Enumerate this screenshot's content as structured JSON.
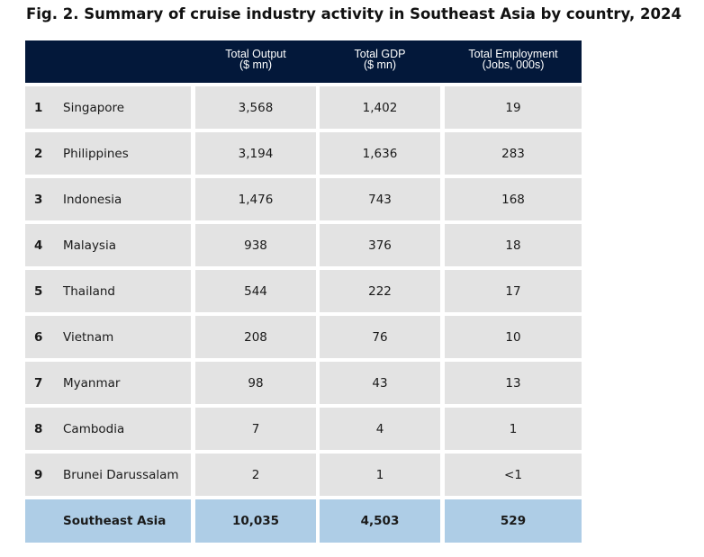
{
  "title": "Fig. 2. Summary of cruise industry activity in Southeast Asia by country, 2024",
  "header": {
    "col1_line1": "Total Output",
    "col1_line2": "($ mn)",
    "col2_line1": "Total GDP",
    "col2_line2": "($ mn)",
    "col3_line1": "Total Employment",
    "col3_line2": "(Jobs, 000s)"
  },
  "rows": [
    {
      "rank": "1",
      "country": "Singapore",
      "output": "3,568",
      "gdp": "1,402",
      "employment": "19"
    },
    {
      "rank": "2",
      "country": "Philippines",
      "output": "3,194",
      "gdp": "1,636",
      "employment": "283"
    },
    {
      "rank": "3",
      "country": "Indonesia",
      "output": "1,476",
      "gdp": "743",
      "employment": "168"
    },
    {
      "rank": "4",
      "country": "Malaysia",
      "output": "938",
      "gdp": "376",
      "employment": "18"
    },
    {
      "rank": "5",
      "country": "Thailand",
      "output": "544",
      "gdp": "222",
      "employment": "17"
    },
    {
      "rank": "6",
      "country": "Vietnam",
      "output": "208",
      "gdp": "76",
      "employment": "10"
    },
    {
      "rank": "7",
      "country": "Myanmar",
      "output": "98",
      "gdp": "43",
      "employment": "13"
    },
    {
      "rank": "8",
      "country": "Cambodia",
      "output": "7",
      "gdp": "4",
      "employment": "1"
    },
    {
      "rank": "9",
      "country": "Brunei Darussalam",
      "output": "2",
      "gdp": "1",
      "employment": "<1"
    }
  ],
  "total": {
    "label": "Southeast Asia",
    "output": "10,035",
    "gdp": "4,503",
    "employment": "529"
  },
  "colors": {
    "header_bg": "#03183a",
    "row_bg": "#e3e3e3",
    "total_bg": "#aecde6"
  }
}
